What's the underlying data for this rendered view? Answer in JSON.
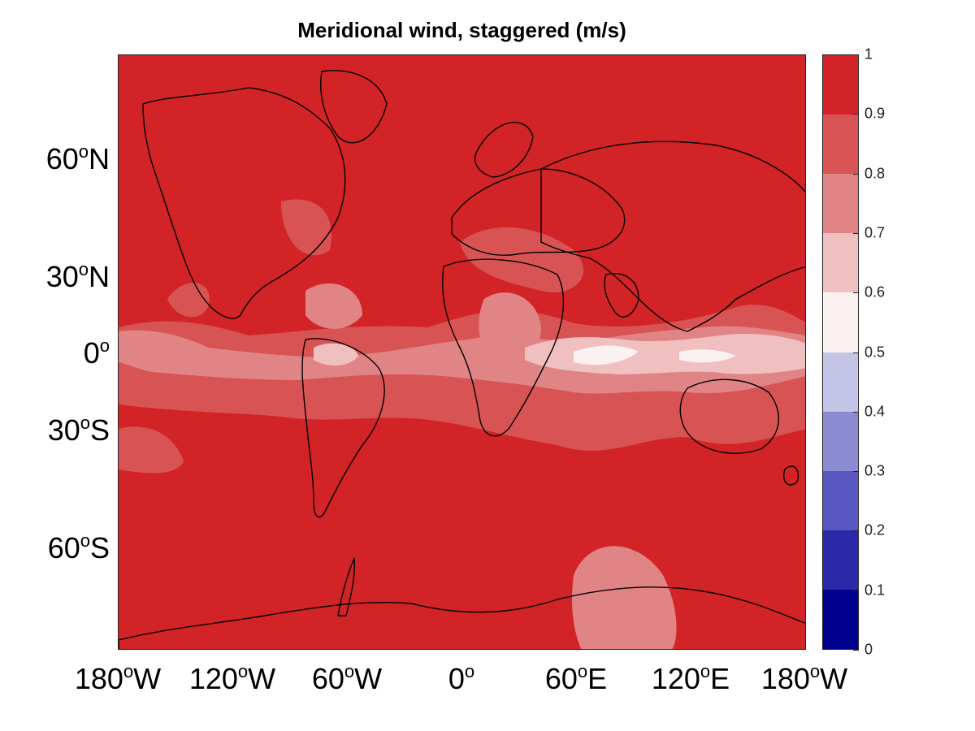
{
  "title": "Meridional wind, staggered (m/s)",
  "map": {
    "projection": "mercator",
    "background_value_range": "0.9-1",
    "colors": {
      "deep_red": "#d22426",
      "red2": "#d85454",
      "red3": "#e18486",
      "pink": "#f0c0c1",
      "white": "#fbf1f1",
      "land_outline": "#000000"
    }
  },
  "y_axis": {
    "ticks": [
      {
        "deg": "60",
        "suffix": "N"
      },
      {
        "deg": "30",
        "suffix": "N"
      },
      {
        "deg": "0",
        "suffix": ""
      },
      {
        "deg": "30",
        "suffix": "S"
      },
      {
        "deg": "60",
        "suffix": "S"
      }
    ]
  },
  "x_axis": {
    "ticks": [
      {
        "deg": "180",
        "suffix": "W"
      },
      {
        "deg": "120",
        "suffix": "W"
      },
      {
        "deg": "60",
        "suffix": "W"
      },
      {
        "deg": "0",
        "suffix": ""
      },
      {
        "deg": "60",
        "suffix": "E"
      },
      {
        "deg": "120",
        "suffix": "E"
      },
      {
        "deg": "180",
        "suffix": "W"
      }
    ]
  },
  "colorbar": {
    "ticks": [
      "0",
      "0.1",
      "0.2",
      "0.3",
      "0.4",
      "0.5",
      "0.6",
      "0.7",
      "0.8",
      "0.9",
      "1"
    ],
    "bins": [
      "#00008f",
      "#2a2aa8",
      "#5858c0",
      "#8c8cd2",
      "#c4c4e6",
      "#fbf1f1",
      "#f0c0c1",
      "#e18486",
      "#d85454",
      "#d22426"
    ]
  }
}
